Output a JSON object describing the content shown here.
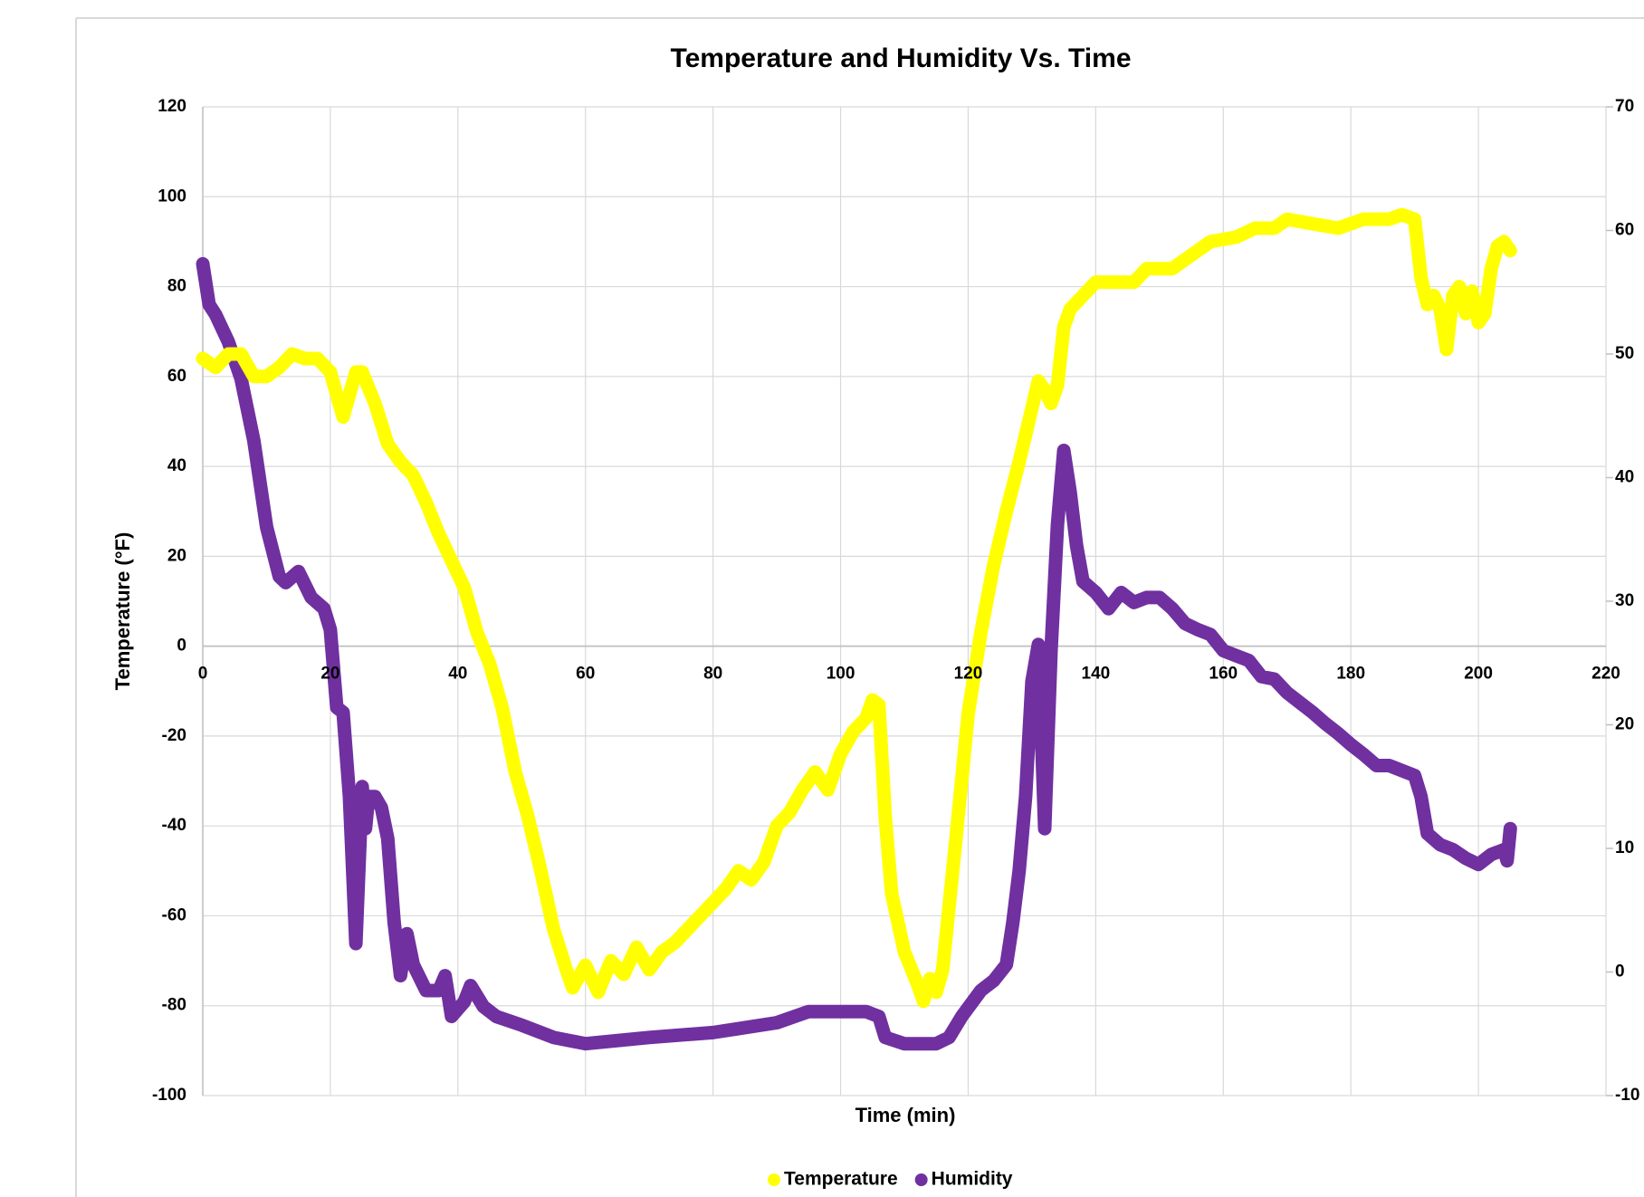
{
  "chart_data": {
    "type": "line",
    "title": "Temperature  and Humidity Vs. Time",
    "x_label": "Time (min)",
    "y_label": "Temperature (°F)",
    "xlim": [
      0,
      220
    ],
    "xticks": [
      0,
      20,
      40,
      60,
      80,
      100,
      120,
      140,
      160,
      180,
      200,
      220
    ],
    "ylim": [
      -100,
      120
    ],
    "yticks": [
      -100,
      -80,
      -60,
      -40,
      -20,
      0,
      20,
      40,
      60,
      80,
      100,
      120
    ],
    "y2lim": [
      -10,
      70
    ],
    "y2ticks": [
      -10,
      0,
      10,
      20,
      30,
      40,
      50,
      60,
      70
    ],
    "grid": true,
    "legend": "bottom",
    "series": [
      {
        "name": "Temperature",
        "color": "#ffff00",
        "x": [
          0,
          2,
          4,
          6,
          8,
          10,
          12,
          14,
          16,
          18,
          20,
          22,
          24,
          25,
          27,
          29,
          31,
          33,
          35,
          37,
          39,
          41,
          43,
          45,
          47,
          49,
          51,
          53,
          55,
          57,
          58,
          60,
          62,
          64,
          66,
          68,
          70,
          72,
          74,
          76,
          78,
          80,
          82,
          84,
          86,
          88,
          90,
          92,
          94,
          96,
          98,
          100,
          102,
          104,
          105,
          106,
          107,
          108,
          110,
          112,
          113,
          114,
          115,
          116,
          118,
          120,
          122,
          124,
          126,
          128,
          130,
          131,
          132,
          133,
          134,
          135,
          136,
          138,
          140,
          143,
          146,
          148,
          150,
          152,
          155,
          158,
          162,
          165,
          168,
          170,
          174,
          178,
          182,
          186,
          188,
          190,
          191,
          192,
          193,
          194,
          195,
          196,
          197,
          198,
          199,
          200,
          201,
          202,
          203,
          204,
          205
        ],
        "values": [
          64,
          62,
          65,
          65,
          60,
          60,
          62,
          65,
          64,
          64,
          61,
          51,
          61,
          61,
          54,
          45,
          41,
          38,
          32,
          25,
          19,
          13,
          3,
          -4,
          -14,
          -28,
          -38,
          -50,
          -63,
          -72,
          -76,
          -71,
          -77,
          -70,
          -73,
          -67,
          -72,
          -68,
          -66,
          -63,
          -60,
          -57,
          -54,
          -50,
          -52,
          -48,
          -40,
          -37,
          -32,
          -28,
          -32,
          -24,
          -19,
          -16,
          -12,
          -13,
          -38,
          -55,
          -68,
          -75,
          -79,
          -74,
          -77,
          -72,
          -44,
          -15,
          3,
          18,
          30,
          41,
          53,
          59,
          57,
          54,
          58,
          71,
          75,
          78,
          81,
          81,
          81,
          84,
          84,
          84,
          87,
          90,
          91,
          93,
          93,
          95,
          94,
          93,
          95,
          95,
          96,
          95,
          82,
          76,
          78,
          75,
          66,
          78,
          80,
          74,
          79,
          72,
          74,
          84,
          89,
          90,
          88
        ]
      },
      {
        "name": "Humidity",
        "color": "#7030a0",
        "axis": "y2",
        "x": [
          0,
          1,
          2,
          4,
          6,
          8,
          10,
          12,
          13,
          15,
          17,
          19,
          20,
          21,
          22,
          23,
          24,
          25,
          25.5,
          26,
          27,
          28,
          29,
          30,
          31,
          32,
          33,
          35,
          37,
          38,
          39,
          41,
          42,
          44,
          46,
          50,
          55,
          60,
          70,
          80,
          90,
          95,
          100,
          104,
          106,
          107,
          110,
          115,
          117,
          119,
          122,
          124,
          126,
          127,
          128,
          129,
          130,
          131,
          132,
          133,
          134,
          135,
          136,
          137,
          138,
          140,
          142,
          144,
          146,
          148,
          150,
          152,
          154,
          156,
          158,
          160,
          162,
          164,
          166,
          168,
          170,
          172,
          174,
          176,
          178,
          180,
          182,
          184,
          186,
          188,
          190,
          191,
          192,
          194,
          196,
          198,
          200,
          202,
          204,
          204.5,
          205
        ],
        "values": [
          57.3,
          54,
          53.2,
          51,
          48,
          43,
          36,
          32,
          31.5,
          32.4,
          30.3,
          29.4,
          27.7,
          21.4,
          21,
          14.2,
          2.3,
          15,
          11.6,
          14.2,
          14.2,
          13.3,
          10.8,
          4,
          -0.3,
          3.1,
          0.6,
          -1.5,
          -1.5,
          -0.3,
          -3.6,
          -2.4,
          -1.1,
          -2.8,
          -3.6,
          -4.3,
          -5.3,
          -5.8,
          -5.3,
          -4.9,
          -4.1,
          -3.2,
          -3.2,
          -3.2,
          -3.6,
          -5.3,
          -5.8,
          -5.8,
          -5.3,
          -3.6,
          -1.5,
          -0.7,
          0.6,
          4,
          8.2,
          14.2,
          23.5,
          26.5,
          11.6,
          26,
          36.2,
          42.2,
          38.8,
          34.5,
          31.6,
          30.7,
          29.4,
          30.7,
          29.9,
          30.3,
          30.3,
          29.4,
          28.2,
          27.7,
          27.3,
          26,
          25.6,
          25.2,
          23.9,
          23.7,
          22.6,
          21.8,
          21,
          20.1,
          19.3,
          18.4,
          17.6,
          16.7,
          16.7,
          16.3,
          15.9,
          14.2,
          11.2,
          10.3,
          9.9,
          9.2,
          8.7,
          9.5,
          9.9,
          9,
          11.6
        ]
      }
    ]
  }
}
